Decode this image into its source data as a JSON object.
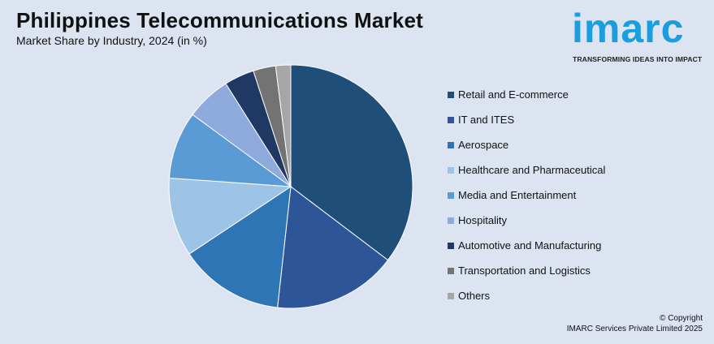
{
  "header": {
    "title": "Philippines Telecommunications Market",
    "subtitle": "Market Share by Industry, 2024 (in %)"
  },
  "logo": {
    "word": "imarc",
    "tagline": "TRANSFORMING IDEAS INTO IMPACT",
    "color": "#1a9ee0"
  },
  "chart_data": {
    "type": "pie",
    "title": "Philippines Telecommunications Market",
    "subtitle": "Market Share by Industry, 2024 (in %)",
    "legend_position": "right",
    "slices": [
      {
        "label": "Retail and E-commerce",
        "value": 35.5,
        "color": "#1f4e79"
      },
      {
        "label": "IT and ITES",
        "value": 16.5,
        "color": "#2e5597"
      },
      {
        "label": "Aerospace",
        "value": 14.0,
        "color": "#2e75b6"
      },
      {
        "label": "Healthcare and Pharmaceutical",
        "value": 10.5,
        "color": "#9dc3e6"
      },
      {
        "label": "Media and Entertainment",
        "value": 9.0,
        "color": "#5b9bd5"
      },
      {
        "label": "Hospitality",
        "value": 6.0,
        "color": "#8faadc"
      },
      {
        "label": "Automotive and Manufacturing",
        "value": 4.0,
        "color": "#203864"
      },
      {
        "label": "Transportation and Logistics",
        "value": 3.0,
        "color": "#737373"
      },
      {
        "label": "Others",
        "value": 2.0,
        "color": "#a6a6a6"
      }
    ]
  },
  "footer": {
    "copyright_line1": "© Copyright",
    "copyright_line2": "IMARC Services Private Limited 2025"
  }
}
